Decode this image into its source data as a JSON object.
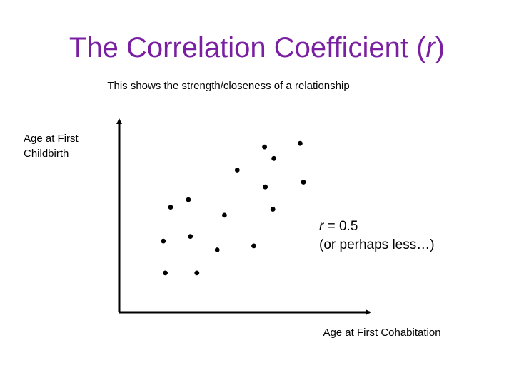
{
  "chart_data": {
    "type": "scatter",
    "title_prefix": "The Correlation Coefficient (",
    "title_var": "r",
    "title_suffix": ")",
    "subtitle": "This shows the strength/closeness of a relationship",
    "ylabel_line1": "Age at First",
    "ylabel_line2": "Childbirth",
    "xlabel": "Age at First Cohabitation",
    "annotation": {
      "var": "r",
      "value_text": " = 0.5",
      "note": "(or perhaps less…)"
    },
    "xlim": [
      0,
      100
    ],
    "ylim": [
      0,
      100
    ],
    "points": [
      {
        "x": 18.4,
        "y": 20.4
      },
      {
        "x": 31.0,
        "y": 20.4
      },
      {
        "x": 17.6,
        "y": 37.0
      },
      {
        "x": 28.4,
        "y": 39.4
      },
      {
        "x": 39.1,
        "y": 32.4
      },
      {
        "x": 53.7,
        "y": 34.5
      },
      {
        "x": 20.5,
        "y": 54.6
      },
      {
        "x": 27.6,
        "y": 58.5
      },
      {
        "x": 42.0,
        "y": 50.4
      },
      {
        "x": 61.3,
        "y": 53.5
      },
      {
        "x": 47.1,
        "y": 73.9
      },
      {
        "x": 58.3,
        "y": 65.1
      },
      {
        "x": 58.0,
        "y": 85.9
      },
      {
        "x": 61.7,
        "y": 79.9
      },
      {
        "x": 72.2,
        "y": 87.7
      },
      {
        "x": 73.5,
        "y": 67.6
      }
    ]
  }
}
